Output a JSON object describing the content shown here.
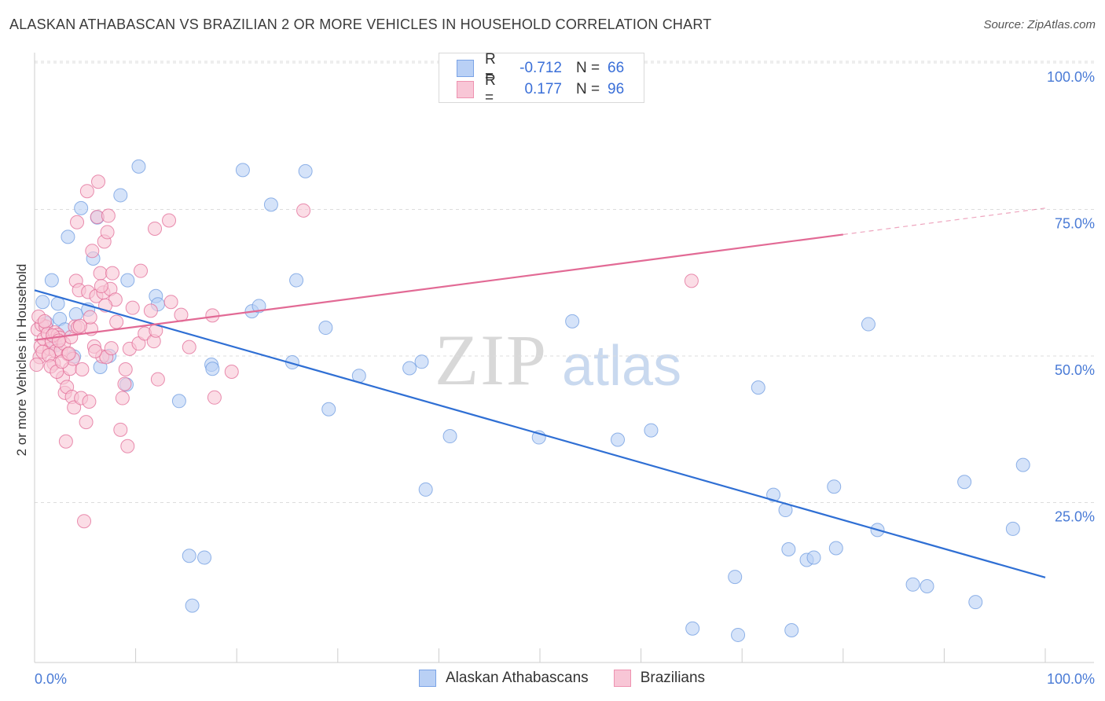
{
  "title": "ALASKAN ATHABASCAN VS BRAZILIAN 2 OR MORE VEHICLES IN HOUSEHOLD CORRELATION CHART",
  "source": "Source: ZipAtlas.com",
  "watermark": {
    "zip": "ZIP",
    "atlas": "atlas"
  },
  "legend": {
    "r_label": "R =",
    "n_label": "N =",
    "rows": [
      {
        "r": "-0.712",
        "n": "66",
        "fill": "#b9d0f5",
        "stroke": "#7aa3e6"
      },
      {
        "r": "0.177",
        "n": "96",
        "fill": "#f8c6d6",
        "stroke": "#ee92b0"
      }
    ]
  },
  "bottom_legend": [
    "Alaskan Athabascans",
    "Brazilians"
  ],
  "chart_data": {
    "type": "scatter",
    "ylabel": "2 or more Vehicles in Household",
    "xlim": [
      0,
      100
    ],
    "ylim": [
      0,
      100
    ],
    "x_tick_labels": [
      "0.0%",
      "100.0%"
    ],
    "y_tick_labels": [
      "100.0%",
      "75.0%",
      "50.0%",
      "25.0%"
    ],
    "y_ticks": [
      100,
      75,
      50,
      25
    ],
    "grid": true,
    "series": [
      {
        "name": "Alaskan Athabascans",
        "color": "#6e9be0",
        "fill": "#b9d0f5",
        "trend": {
          "x0": 0,
          "y0": 63.5,
          "x1": 100,
          "y1": 14.5,
          "dashed_from": null
        },
        "points": [
          [
            0.8,
            61.5
          ],
          [
            1.2,
            57.9
          ],
          [
            1.7,
            65.2
          ],
          [
            2.3,
            61.2
          ],
          [
            2.5,
            58.6
          ],
          [
            3.3,
            72.6
          ],
          [
            3.9,
            52.2
          ],
          [
            4.1,
            59.4
          ],
          [
            4.6,
            77.5
          ],
          [
            5.3,
            60.2
          ],
          [
            5.8,
            68.9
          ],
          [
            6.2,
            75.9
          ],
          [
            6.5,
            50.4
          ],
          [
            7.4,
            52.3
          ],
          [
            8.5,
            79.7
          ],
          [
            9.1,
            47.4
          ],
          [
            9.2,
            65.2
          ],
          [
            10.3,
            84.6
          ],
          [
            12.0,
            62.5
          ],
          [
            12.2,
            61.1
          ],
          [
            14.3,
            44.6
          ],
          [
            15.3,
            18.2
          ],
          [
            15.6,
            9.7
          ],
          [
            16.8,
            17.9
          ],
          [
            17.5,
            50.8
          ],
          [
            17.6,
            50.1
          ],
          [
            20.6,
            84.0
          ],
          [
            21.5,
            59.9
          ],
          [
            22.2,
            60.8
          ],
          [
            23.4,
            78.1
          ],
          [
            25.5,
            51.2
          ],
          [
            25.9,
            65.2
          ],
          [
            26.8,
            83.8
          ],
          [
            28.8,
            57.1
          ],
          [
            29.1,
            43.2
          ],
          [
            32.1,
            48.9
          ],
          [
            37.1,
            50.2
          ],
          [
            38.3,
            51.3
          ],
          [
            38.7,
            29.5
          ],
          [
            41.1,
            38.6
          ],
          [
            49.9,
            38.4
          ],
          [
            53.2,
            58.2
          ],
          [
            57.7,
            38.0
          ],
          [
            61.0,
            39.6
          ],
          [
            65.1,
            5.8
          ],
          [
            69.3,
            14.6
          ],
          [
            69.6,
            4.7
          ],
          [
            71.6,
            46.9
          ],
          [
            73.1,
            28.6
          ],
          [
            74.3,
            26.0
          ],
          [
            74.6,
            19.3
          ],
          [
            74.9,
            5.5
          ],
          [
            76.4,
            17.5
          ],
          [
            77.1,
            17.9
          ],
          [
            79.1,
            30.0
          ],
          [
            79.3,
            19.5
          ],
          [
            82.5,
            57.7
          ],
          [
            83.4,
            22.6
          ],
          [
            86.9,
            13.3
          ],
          [
            88.3,
            13.0
          ],
          [
            92.0,
            30.8
          ],
          [
            93.1,
            10.3
          ],
          [
            96.8,
            22.8
          ],
          [
            97.8,
            33.7
          ],
          [
            2.1,
            54.1
          ],
          [
            3.0,
            56.8
          ]
        ]
      },
      {
        "name": "Brazilians",
        "color": "#e26a95",
        "fill": "#f8c6d6",
        "trend": {
          "x0": 0,
          "y0": 55.0,
          "x1": 100,
          "y1": 77.5,
          "dashed_from": 80
        },
        "points": [
          [
            0.3,
            56.8
          ],
          [
            0.5,
            52.1
          ],
          [
            0.6,
            53.9
          ],
          [
            0.7,
            57.6
          ],
          [
            0.9,
            55.2
          ],
          [
            1.1,
            57.3
          ],
          [
            1.3,
            56.1
          ],
          [
            1.5,
            53.5
          ],
          [
            1.7,
            54.8
          ],
          [
            1.9,
            51.0
          ],
          [
            2.0,
            56.3
          ],
          [
            2.1,
            53.1
          ],
          [
            2.3,
            55.9
          ],
          [
            2.5,
            55.4
          ],
          [
            2.6,
            53.2
          ],
          [
            2.8,
            48.6
          ],
          [
            2.9,
            54.4
          ],
          [
            3.0,
            46.0
          ],
          [
            3.1,
            37.7
          ],
          [
            3.2,
            47.0
          ],
          [
            3.3,
            52.6
          ],
          [
            3.5,
            50.1
          ],
          [
            3.6,
            55.5
          ],
          [
            3.7,
            45.3
          ],
          [
            3.8,
            51.8
          ],
          [
            3.9,
            43.5
          ],
          [
            4.0,
            57.3
          ],
          [
            4.1,
            65.1
          ],
          [
            4.2,
            75.1
          ],
          [
            4.3,
            57.2
          ],
          [
            4.4,
            63.5
          ],
          [
            4.6,
            45.1
          ],
          [
            4.7,
            50.0
          ],
          [
            4.9,
            24.1
          ],
          [
            5.1,
            41.0
          ],
          [
            5.2,
            80.4
          ],
          [
            5.3,
            63.2
          ],
          [
            5.4,
            44.5
          ],
          [
            5.6,
            56.9
          ],
          [
            5.7,
            70.2
          ],
          [
            5.9,
            53.9
          ],
          [
            6.1,
            62.5
          ],
          [
            6.2,
            76.0
          ],
          [
            6.3,
            82.0
          ],
          [
            6.5,
            66.4
          ],
          [
            6.7,
            52.2
          ],
          [
            6.8,
            63.1
          ],
          [
            6.9,
            71.8
          ],
          [
            7.1,
            52.1
          ],
          [
            7.2,
            73.4
          ],
          [
            7.3,
            76.2
          ],
          [
            7.5,
            63.7
          ],
          [
            7.6,
            53.6
          ],
          [
            7.7,
            66.4
          ],
          [
            8.0,
            61.9
          ],
          [
            8.1,
            58.1
          ],
          [
            8.5,
            39.7
          ],
          [
            8.7,
            45.1
          ],
          [
            8.9,
            47.5
          ],
          [
            9.0,
            50.0
          ],
          [
            9.2,
            36.9
          ],
          [
            9.4,
            53.5
          ],
          [
            9.7,
            60.5
          ],
          [
            10.3,
            54.4
          ],
          [
            10.5,
            66.8
          ],
          [
            10.9,
            56.1
          ],
          [
            11.5,
            60.0
          ],
          [
            11.8,
            54.8
          ],
          [
            11.9,
            74.0
          ],
          [
            12.0,
            56.6
          ],
          [
            12.2,
            48.3
          ],
          [
            13.3,
            75.4
          ],
          [
            13.5,
            61.5
          ],
          [
            14.5,
            59.3
          ],
          [
            15.3,
            53.8
          ],
          [
            17.6,
            59.2
          ],
          [
            17.8,
            45.2
          ],
          [
            19.5,
            49.6
          ],
          [
            26.6,
            77.1
          ],
          [
            65.0,
            65.1
          ],
          [
            0.4,
            59.0
          ],
          [
            0.8,
            53.0
          ],
          [
            1.0,
            58.2
          ],
          [
            1.4,
            52.4
          ],
          [
            1.6,
            50.5
          ],
          [
            1.8,
            55.8
          ],
          [
            2.2,
            49.6
          ],
          [
            2.4,
            54.9
          ],
          [
            2.7,
            51.3
          ],
          [
            3.4,
            52.7
          ],
          [
            4.5,
            57.4
          ],
          [
            5.5,
            58.9
          ],
          [
            6.0,
            53.1
          ],
          [
            6.6,
            64.2
          ],
          [
            7.0,
            60.9
          ],
          [
            0.2,
            50.8
          ]
        ]
      }
    ]
  }
}
